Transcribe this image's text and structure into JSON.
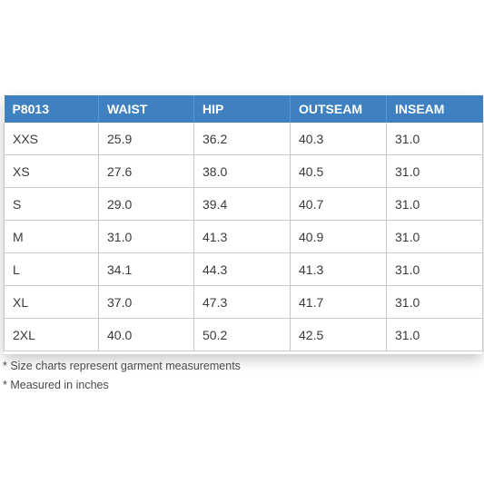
{
  "table": {
    "headers": [
      "P8013",
      "WAIST",
      "HIP",
      "OUTSEAM",
      "INSEAM"
    ],
    "rows": [
      [
        "XXS",
        "25.9",
        "36.2",
        "40.3",
        "31.0"
      ],
      [
        "XS",
        "27.6",
        "38.0",
        "40.5",
        "31.0"
      ],
      [
        "S",
        "29.0",
        "39.4",
        "40.7",
        "31.0"
      ],
      [
        "M",
        "31.0",
        "41.3",
        "40.9",
        "31.0"
      ],
      [
        "L",
        "34.1",
        "44.3",
        "41.3",
        "31.0"
      ],
      [
        "XL",
        "37.0",
        "47.3",
        "41.7",
        "31.0"
      ],
      [
        "2XL",
        "40.0",
        "50.2",
        "42.5",
        "31.0"
      ]
    ]
  },
  "notes": {
    "line1": "* Size charts represent garment measurements",
    "line2": "* Measured in inches"
  },
  "colors": {
    "header_bg": "#3f80c0",
    "header_text": "#ffffff",
    "cell_border": "#c8c8c8",
    "cell_text": "#3a3a3a"
  }
}
